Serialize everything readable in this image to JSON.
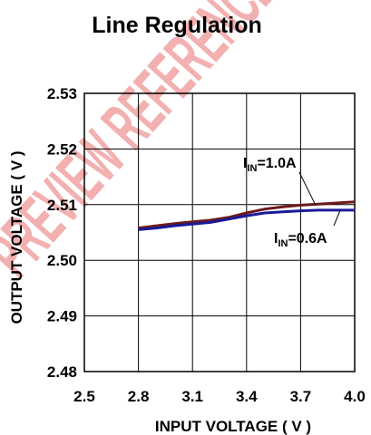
{
  "chart_data": {
    "type": "line",
    "title": "Line Regulation",
    "xlabel": "INPUT VOLTAGE ( V )",
    "ylabel": "OUTPUT VOLTAGE ( V )",
    "xlim": [
      2.5,
      4.0
    ],
    "ylim": [
      2.48,
      2.53
    ],
    "x_ticks": [
      "2.5",
      "2.8",
      "3.1",
      "3.4",
      "3.7",
      "4.0"
    ],
    "y_ticks": [
      "2.48",
      "2.49",
      "2.50",
      "2.51",
      "2.52",
      "2.53"
    ],
    "grid": true,
    "series": [
      {
        "name_main": "I",
        "name_sub": "IN",
        "name_rest": "=1.0A",
        "color": "#6b1a1a",
        "x": [
          2.8,
          2.9,
          3.0,
          3.1,
          3.2,
          3.3,
          3.4,
          3.5,
          3.6,
          3.7,
          3.8,
          3.9,
          4.0
        ],
        "y": [
          2.5058,
          2.5062,
          2.5066,
          2.5069,
          2.5072,
          2.5077,
          2.5085,
          2.5092,
          2.5096,
          2.5099,
          2.5101,
          2.5103,
          2.5105
        ]
      },
      {
        "name_main": "I",
        "name_sub": "IN",
        "name_rest": "=0.6A",
        "color": "#1a1a99",
        "x": [
          2.8,
          2.9,
          3.0,
          3.1,
          3.2,
          3.3,
          3.4,
          3.5,
          3.6,
          3.7,
          3.8,
          3.9,
          4.0
        ],
        "y": [
          2.5055,
          2.5058,
          2.5062,
          2.5065,
          2.5068,
          2.5074,
          2.508,
          2.5085,
          2.5087,
          2.5089,
          2.509,
          2.509,
          2.509
        ]
      }
    ]
  },
  "watermark": {
    "text": "PREVIEW REFERENCE",
    "color": "#f2a3a3"
  }
}
